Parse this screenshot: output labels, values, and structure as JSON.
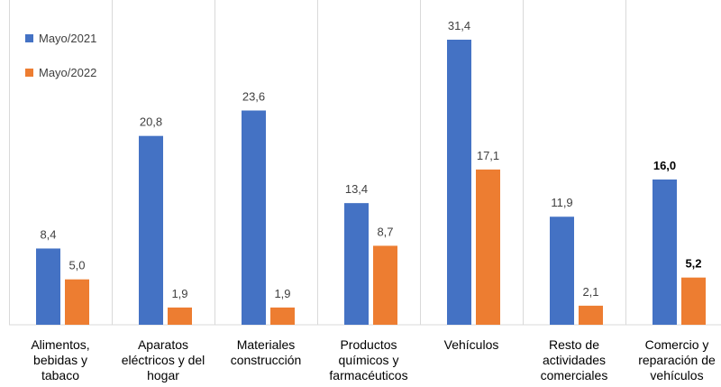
{
  "chart_data": {
    "type": "bar",
    "categories": [
      [
        "Alimentos,",
        "bebidas y",
        "tabaco"
      ],
      [
        "Aparatos",
        "eléctricos y del",
        "hogar"
      ],
      [
        "Materiales",
        "construcción"
      ],
      [
        "Productos",
        "químicos y",
        "farmacéuticos"
      ],
      [
        "Vehículos"
      ],
      [
        "Resto de",
        "actividades",
        "comerciales"
      ],
      [
        "Comercio y",
        "reparación de",
        "vehículos"
      ]
    ],
    "series": [
      {
        "name": "Mayo/2021",
        "color": "#4472c4",
        "values": [
          8.4,
          20.8,
          23.6,
          13.4,
          31.4,
          11.9,
          16.0
        ]
      },
      {
        "name": "Mayo/2022",
        "color": "#ed7d31",
        "values": [
          5.0,
          1.9,
          1.9,
          8.7,
          17.1,
          2.1,
          5.2
        ]
      }
    ],
    "value_labels": [
      [
        "8,4",
        "20,8",
        "23,6",
        "13,4",
        "31,4",
        "11,9",
        "16,0"
      ],
      [
        "5,0",
        "1,9",
        "1,9",
        "8,7",
        "17,1",
        "2,1",
        "5,2"
      ]
    ],
    "bold_category_index": 6,
    "ylim": [
      0,
      35
    ],
    "grid": false,
    "legend_position": "top-left"
  }
}
